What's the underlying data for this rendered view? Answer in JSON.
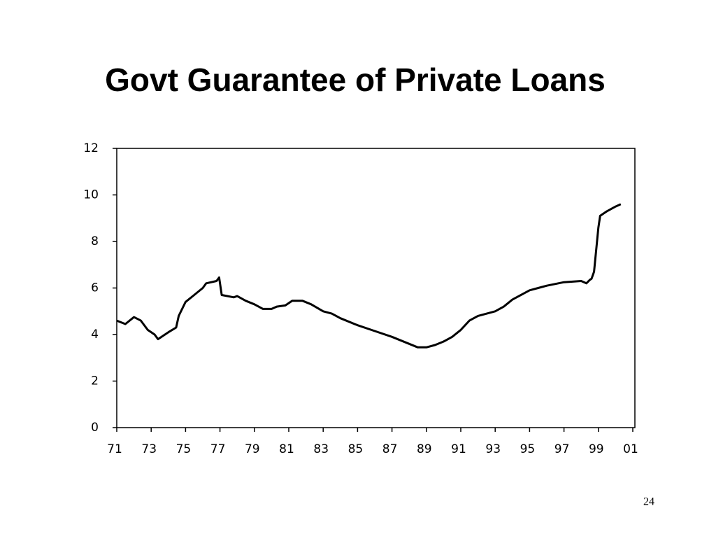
{
  "chart_data": {
    "type": "line",
    "title": "Govt Guarantee of Private Loans",
    "page_number": "24",
    "x": [
      1971.0,
      1971.5,
      1972.0,
      1972.4,
      1972.8,
      1973.2,
      1973.4,
      1974.0,
      1974.45,
      1974.6,
      1975.0,
      1975.5,
      1976.0,
      1976.2,
      1976.8,
      1976.95,
      1977.1,
      1977.8,
      1978.0,
      1978.5,
      1979.0,
      1979.5,
      1980.0,
      1980.3,
      1980.8,
      1981.2,
      1981.8,
      1982.3,
      1983.0,
      1983.5,
      1984.0,
      1985.0,
      1986.0,
      1987.0,
      1988.0,
      1988.5,
      1989.0,
      1989.5,
      1990.0,
      1990.5,
      1991.0,
      1991.5,
      1992.0,
      1993.0,
      1993.5,
      1994.0,
      1995.0,
      1995.5,
      1996.0,
      1997.0,
      1998.0,
      1998.3,
      1998.5,
      1998.6,
      1998.75,
      1999.0,
      1999.1,
      1999.5,
      2000.0,
      2000.3
    ],
    "series": [
      {
        "color": "#000000",
        "values": [
          4.6,
          4.45,
          4.75,
          4.6,
          4.2,
          4.0,
          3.8,
          4.1,
          4.3,
          4.8,
          5.4,
          5.7,
          6.0,
          6.2,
          6.3,
          6.45,
          5.7,
          5.6,
          5.65,
          5.45,
          5.3,
          5.1,
          5.1,
          5.2,
          5.25,
          5.45,
          5.45,
          5.3,
          5.0,
          4.9,
          4.7,
          4.4,
          4.15,
          3.9,
          3.6,
          3.45,
          3.45,
          3.55,
          3.7,
          3.9,
          4.2,
          4.6,
          4.8,
          5.0,
          5.2,
          5.5,
          5.9,
          6.0,
          6.1,
          6.25,
          6.3,
          6.2,
          6.35,
          6.4,
          6.7,
          8.6,
          9.1,
          9.3,
          9.5,
          9.6
        ]
      }
    ],
    "xlim": [
      1971,
      2001
    ],
    "xticks": [
      {
        "value": 1971,
        "label": "71"
      },
      {
        "value": 1973,
        "label": "73"
      },
      {
        "value": 1975,
        "label": "75"
      },
      {
        "value": 1977,
        "label": "77"
      },
      {
        "value": 1979,
        "label": "79"
      },
      {
        "value": 1981,
        "label": "81"
      },
      {
        "value": 1983,
        "label": "83"
      },
      {
        "value": 1985,
        "label": "85"
      },
      {
        "value": 1987,
        "label": "87"
      },
      {
        "value": 1989,
        "label": "89"
      },
      {
        "value": 1991,
        "label": "91"
      },
      {
        "value": 1993,
        "label": "93"
      },
      {
        "value": 1995,
        "label": "95"
      },
      {
        "value": 1997,
        "label": "97"
      },
      {
        "value": 1999,
        "label": "99"
      },
      {
        "value": 2001,
        "label": "01"
      }
    ],
    "ylim": [
      0,
      12
    ],
    "yticks": [
      0,
      2,
      4,
      6,
      8,
      10,
      12
    ]
  }
}
